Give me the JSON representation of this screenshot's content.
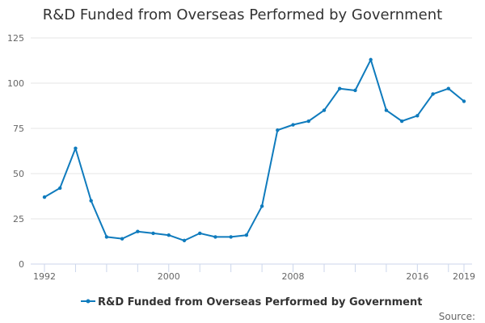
{
  "chart_data": {
    "type": "line",
    "title": "R&D Funded from Overseas Performed by Government",
    "xlabel": "",
    "ylabel": "",
    "x": [
      1992,
      1993,
      1994,
      1995,
      1996,
      1997,
      1998,
      1999,
      2000,
      2001,
      2002,
      2003,
      2004,
      2005,
      2006,
      2007,
      2008,
      2009,
      2010,
      2011,
      2012,
      2013,
      2014,
      2015,
      2016,
      2017,
      2018,
      2019
    ],
    "series": [
      {
        "name": "R&D Funded from Overseas Performed by Government",
        "values": [
          37,
          42,
          64,
          35,
          15,
          14,
          18,
          17,
          16,
          13,
          17,
          15,
          15,
          16,
          32,
          74,
          77,
          79,
          85,
          97,
          96,
          113,
          85,
          79,
          82,
          94,
          97,
          90
        ]
      }
    ],
    "xlim": [
      1992,
      2019
    ],
    "ylim": [
      0,
      125
    ],
    "x_tick_labels": [
      "1992",
      "2000",
      "2008",
      "2016",
      "2019"
    ],
    "y_tick_labels": [
      "0",
      "25",
      "50",
      "75",
      "100",
      "125"
    ],
    "grid": true,
    "legend_position": "bottom-center",
    "series_color": "#0f7bbd",
    "source_label": "Source:"
  }
}
